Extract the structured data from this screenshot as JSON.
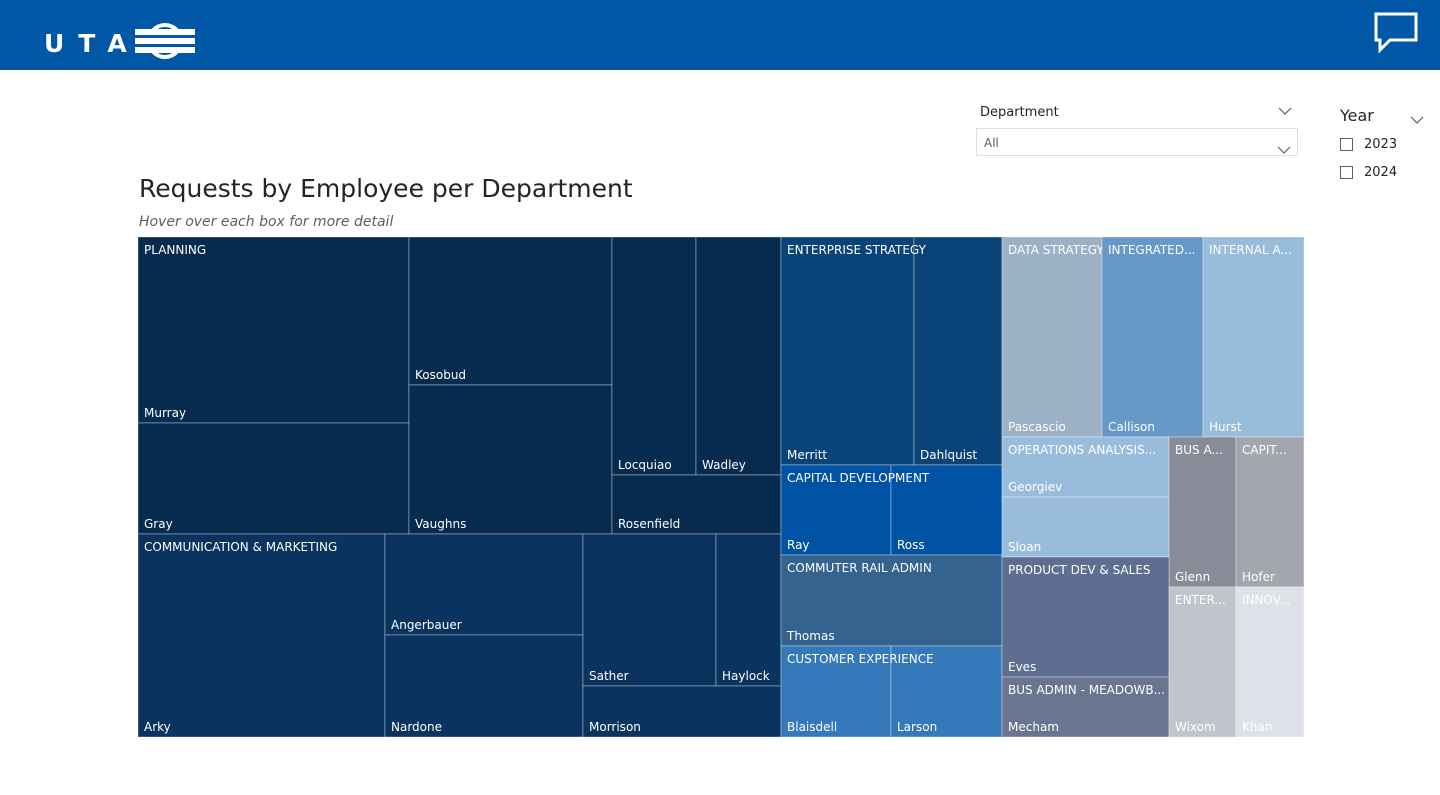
{
  "header": {
    "logo_text": "UTA",
    "icons": {
      "logo_mark": "uta-rail-mark-icon",
      "feedback": "chat-bubble-icon"
    },
    "colors": {
      "header_bg": "#0057a6"
    }
  },
  "filters": {
    "department": {
      "title": "Department",
      "selected": "All"
    },
    "year": {
      "title": "Year",
      "options": [
        "2023",
        "2024"
      ]
    }
  },
  "chart": {
    "title": "Requests by Employee per Department",
    "subtitle": "Hover over each box for more detail"
  },
  "chart_data": {
    "type": "treemap",
    "groups": [
      {
        "department": "PLANNING",
        "color": "#062b4e",
        "employees": [
          "Murray",
          "Gray",
          "Kosobud",
          "Vaughns",
          "Locquiao",
          "Wadley",
          "Rosenfield"
        ]
      },
      {
        "department": "COMMUNICATION & MARKETING",
        "color": "#0a335f",
        "employees": [
          "Arky",
          "Angerbauer",
          "Nardone",
          "Sather",
          "Haylock",
          "Morrison"
        ]
      },
      {
        "department": "ENTERPRISE STRATEGY",
        "color": "#0a4378",
        "employees": [
          "Merritt",
          "Dahlquist"
        ]
      },
      {
        "department": "CAPITAL DEVELOPMENT",
        "color": "#0053a4",
        "employees": [
          "Ray",
          "Ross"
        ]
      },
      {
        "department": "COMMUTER RAIL ADMIN",
        "color": "#34638f",
        "employees": [
          "Thomas"
        ]
      },
      {
        "department": "CUSTOMER EXPERIENCE",
        "color": "#3679bb",
        "employees": [
          "Blaisdell",
          "Larson"
        ]
      },
      {
        "department": "DATA STRATEGY",
        "color": "#9cb0c6",
        "employees": [
          "Pascascio"
        ]
      },
      {
        "department": "INTEGRATED S...",
        "color": "#6699c8",
        "employees": [
          "Callison"
        ]
      },
      {
        "department": "INTERNAL AU...",
        "color": "#98bcdc",
        "employees": [
          "Hurst"
        ]
      },
      {
        "department": "OPERATIONS ANALYSIS & ...",
        "color": "#9abcdc",
        "employees": [
          "Georgiev",
          "Sloan"
        ]
      },
      {
        "department": "BUS AD...",
        "color": "#898c98",
        "employees": [
          "Glenn"
        ]
      },
      {
        "department": "CAPITAL...",
        "color": "#a4a6ae",
        "employees": [
          "Hofer"
        ]
      },
      {
        "department": "PRODUCT DEV & SALES",
        "color": "#5e6e90",
        "employees": [
          "Eves"
        ]
      },
      {
        "department": "BUS ADMIN - MEADOWBR...",
        "color": "#6a7690",
        "employees": [
          "Mecham"
        ]
      },
      {
        "department": "ENTERP...",
        "color": "#c2c4cc",
        "employees": [
          "Wixom"
        ]
      },
      {
        "department": "INNOVA...",
        "color": "#dfe1e8",
        "employees": [
          "Khan"
        ]
      }
    ]
  }
}
